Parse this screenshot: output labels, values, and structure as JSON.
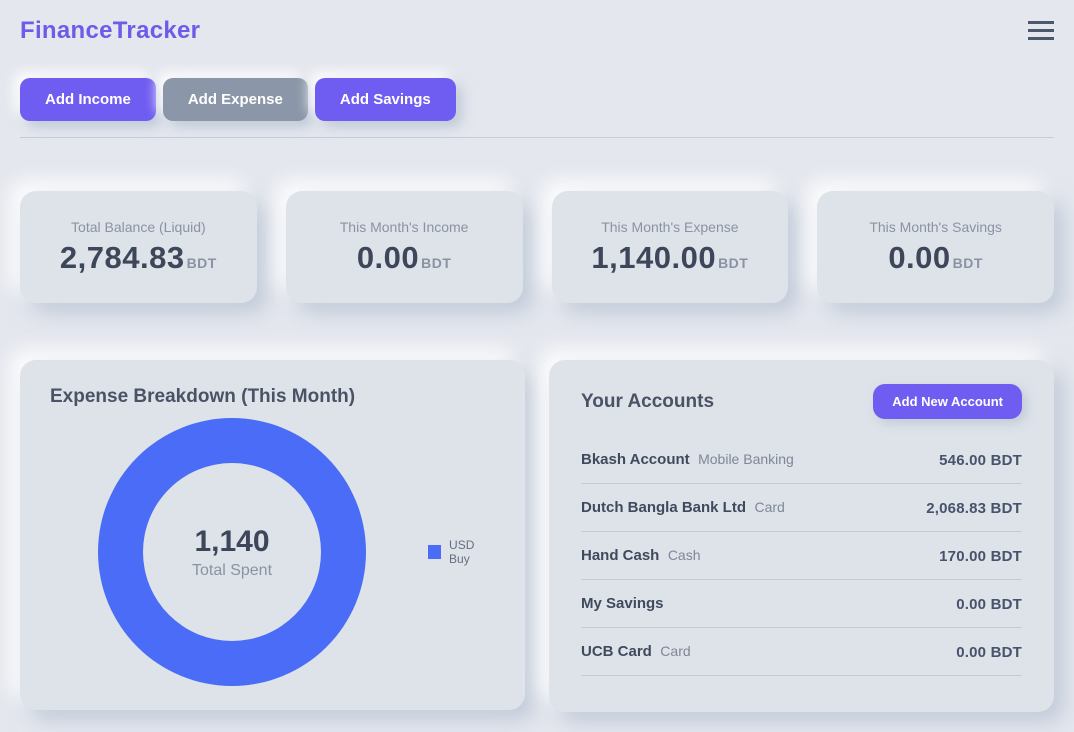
{
  "header": {
    "title": "FinanceTracker"
  },
  "colors": {
    "primary_purple": "#6f5cf1",
    "title_purple": "#6c5ce7",
    "gray_button": "#8b97a8",
    "chart_blue": "#4a6cf7",
    "page_background": "#e4e7ee",
    "card_background": "#dee3ea"
  },
  "actions": {
    "add_income": "Add Income",
    "add_expense": "Add Expense",
    "add_savings": "Add Savings"
  },
  "stats": [
    {
      "label": "Total Balance (Liquid)",
      "value": "2,784.83",
      "currency": "BDT"
    },
    {
      "label": "This Month's Income",
      "value": "0.00",
      "currency": "BDT"
    },
    {
      "label": "This Month's Expense",
      "value": "1,140.00",
      "currency": "BDT"
    },
    {
      "label": "This Month's Savings",
      "value": "0.00",
      "currency": "BDT"
    }
  ],
  "chart": {
    "title": "Expense Breakdown (This Month)",
    "center_value": "1,140",
    "center_label": "Total Spent",
    "legend_label": "USD Buy",
    "color": "#4a6cf7"
  },
  "chart_data": {
    "type": "pie",
    "subtype": "donut",
    "title": "Expense Breakdown (This Month)",
    "categories": [
      "USD Buy"
    ],
    "values": [
      1140
    ],
    "total": 1140,
    "center_text": [
      "1,140",
      "Total Spent"
    ],
    "colors": [
      "#4a6cf7"
    ],
    "legend_position": "right"
  },
  "accounts": {
    "title": "Your Accounts",
    "add_button": "Add New Account",
    "items": [
      {
        "name": "Bkash Account",
        "type": "Mobile Banking",
        "amount": "546.00 BDT"
      },
      {
        "name": "Dutch Bangla Bank Ltd",
        "type": "Card",
        "amount": "2,068.83 BDT"
      },
      {
        "name": "Hand Cash",
        "type": "Cash",
        "amount": "170.00 BDT"
      },
      {
        "name": "My Savings",
        "type": "",
        "amount": "0.00 BDT"
      },
      {
        "name": "UCB Card",
        "type": "Card",
        "amount": "0.00 BDT"
      }
    ]
  }
}
